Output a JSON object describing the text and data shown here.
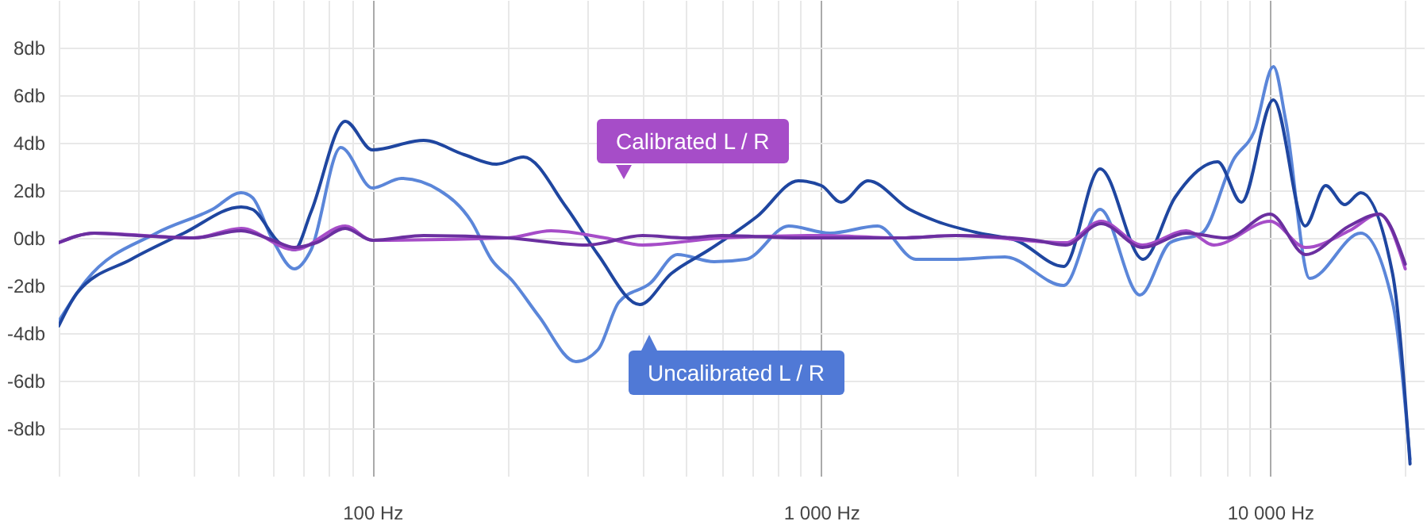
{
  "chart_data": {
    "type": "line",
    "xlim": [
      20,
      22000
    ],
    "ylim": [
      -10,
      10
    ],
    "log": "x",
    "grid": true,
    "xticks": [
      {
        "value": 20,
        "label": null
      },
      {
        "value": 30,
        "label": null
      },
      {
        "value": 40,
        "label": null
      },
      {
        "value": 50,
        "label": null
      },
      {
        "value": 60,
        "label": null
      },
      {
        "value": 70,
        "label": null
      },
      {
        "value": 80,
        "label": null
      },
      {
        "value": 90,
        "label": null
      },
      {
        "value": 100,
        "label": "100 Hz"
      },
      {
        "value": 200,
        "label": null
      },
      {
        "value": 300,
        "label": null
      },
      {
        "value": 400,
        "label": null
      },
      {
        "value": 500,
        "label": null
      },
      {
        "value": 600,
        "label": null
      },
      {
        "value": 700,
        "label": null
      },
      {
        "value": 800,
        "label": null
      },
      {
        "value": 900,
        "label": null
      },
      {
        "value": 1000,
        "label": "1 000 Hz"
      },
      {
        "value": 2000,
        "label": null
      },
      {
        "value": 3000,
        "label": null
      },
      {
        "value": 4000,
        "label": null
      },
      {
        "value": 5000,
        "label": null
      },
      {
        "value": 6000,
        "label": null
      },
      {
        "value": 7000,
        "label": null
      },
      {
        "value": 8000,
        "label": null
      },
      {
        "value": 9000,
        "label": null
      },
      {
        "value": 10000,
        "label": "10 000 Hz"
      },
      {
        "value": 20000,
        "label": null
      }
    ],
    "yticks": [
      {
        "value": -8,
        "label": "-8db"
      },
      {
        "value": -6,
        "label": "-6db"
      },
      {
        "value": -4,
        "label": "-4db"
      },
      {
        "value": -2,
        "label": "-2db"
      },
      {
        "value": 0,
        "label": "0db"
      },
      {
        "value": 2,
        "label": "2db"
      },
      {
        "value": 4,
        "label": "4db"
      },
      {
        "value": 6,
        "label": "6db"
      },
      {
        "value": 8,
        "label": "8db"
      }
    ],
    "series": [
      {
        "color": "#5b86d9",
        "x": [
          20,
          23,
          33,
          44,
          51,
          54,
          60,
          67,
          73,
          85,
          100,
          116,
          141,
          166,
          184,
          205,
          235,
          284,
          318,
          354,
          416,
          478,
          577,
          679,
          846,
          1045,
          1335,
          1624,
          1960,
          2564,
          3467,
          4180,
          5129,
          5984,
          7047,
          8293,
          9226,
          10170,
          10840,
          12250,
          15920,
          18740,
          20500
        ],
        "values": [
          -3.5,
          -1.8,
          0.2,
          1.2,
          1.9,
          1.7,
          -0.1,
          -1.3,
          -0.5,
          3.8,
          2.1,
          2.5,
          2.0,
          0.7,
          -0.9,
          -1.8,
          -3.3,
          -5.2,
          -4.7,
          -2.7,
          -1.9,
          -0.7,
          -1.0,
          -0.9,
          0.5,
          0.2,
          0.5,
          -0.9,
          -0.9,
          -0.8,
          -2.0,
          1.2,
          -2.4,
          -0.2,
          0.2,
          3.3,
          4.5,
          7.2,
          4.9,
          -1.7,
          0.2,
          -2.7,
          -9.3
        ]
      },
      {
        "color": "#1f46a0",
        "x": [
          20,
          22,
          29,
          38,
          51,
          54,
          62,
          67,
          73,
          87,
          100,
          130,
          160,
          189,
          217,
          270,
          318,
          394,
          463,
          562,
          719,
          889,
          1000,
          1107,
          1271,
          1572,
          1806,
          2250,
          2716,
          3467,
          4180,
          5212,
          6138,
          7640,
          8630,
          10170,
          11970,
          13300,
          14660,
          15920,
          18740,
          20500
        ],
        "values": [
          -3.7,
          -2.3,
          -0.9,
          0.2,
          1.3,
          1.2,
          -0.2,
          -0.5,
          1.1,
          4.9,
          3.7,
          4.1,
          3.5,
          3.1,
          3.4,
          1.3,
          -0.7,
          -2.8,
          -1.5,
          -0.5,
          0.9,
          2.4,
          2.2,
          1.5,
          2.4,
          1.2,
          0.7,
          0.2,
          -0.1,
          -1.2,
          2.9,
          -0.9,
          1.7,
          3.2,
          1.5,
          5.8,
          0.5,
          2.2,
          1.4,
          1.9,
          -1.5,
          -9.5
        ]
      },
      {
        "color": "#a64dc8",
        "x": [
          20,
          24,
          40,
          51,
          67,
          87,
          100,
          200,
          250,
          330,
          400,
          600,
          1000,
          1500,
          2000,
          3500,
          4200,
          5200,
          6500,
          7500,
          10000,
          12000,
          15000,
          17500,
          20000
        ],
        "values": [
          -0.2,
          0.2,
          0.0,
          0.4,
          -0.5,
          0.5,
          -0.1,
          0.0,
          0.3,
          0.0,
          -0.3,
          0.0,
          0.1,
          0.0,
          0.1,
          -0.2,
          0.7,
          -0.3,
          0.3,
          -0.3,
          0.7,
          -0.4,
          0.3,
          1.0,
          -1.3
        ]
      },
      {
        "color": "#6b2fa0",
        "x": [
          20,
          24,
          30,
          40,
          51,
          60,
          67,
          75,
          87,
          100,
          130,
          200,
          300,
          400,
          500,
          600,
          900,
          1200,
          1500,
          2000,
          3000,
          3500,
          4200,
          5200,
          6500,
          8000,
          10000,
          12000,
          15000,
          17500,
          20000
        ],
        "values": [
          -0.2,
          0.2,
          0.1,
          0.0,
          0.3,
          -0.1,
          -0.4,
          -0.2,
          0.4,
          -0.1,
          0.1,
          0.0,
          -0.3,
          0.1,
          0.0,
          0.1,
          0.0,
          0.0,
          0.0,
          0.1,
          -0.1,
          -0.3,
          0.6,
          -0.4,
          0.2,
          0.0,
          1.0,
          -0.7,
          0.5,
          1.0,
          -1.1
        ]
      }
    ],
    "annotations": [
      "Calibrated L / R",
      "Uncalibrated L / R"
    ]
  }
}
